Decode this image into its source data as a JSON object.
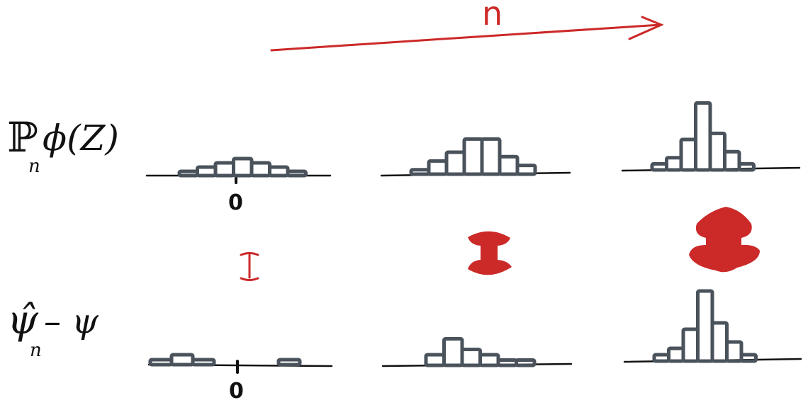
{
  "header": {
    "n_label": "n"
  },
  "rows": [
    {
      "label_main": "ℙ",
      "label_sub": "n",
      "label_rest": "ϕ(Z)"
    },
    {
      "label_main": "ψ̂",
      "label_sub": "n",
      "label_rest": "– ψ"
    }
  ],
  "zero_label": "0",
  "panels": {
    "top": [
      {
        "bars": [
          1,
          2,
          3,
          4,
          3,
          2,
          1
        ]
      },
      {
        "bars": [
          1,
          3,
          5,
          8,
          8,
          4,
          2
        ]
      },
      {
        "bars": [
          1,
          2,
          5,
          11,
          6,
          3,
          1
        ]
      }
    ],
    "bottom": [
      {
        "bars": [
          1,
          2,
          1,
          0,
          0,
          0,
          1
        ]
      },
      {
        "bars": [
          2,
          5,
          3,
          2,
          1,
          1
        ]
      },
      {
        "bars": [
          1,
          2,
          5,
          11,
          6,
          3,
          1
        ]
      }
    ]
  },
  "gap_markers": [
    "small",
    "medium",
    "large"
  ],
  "colors": {
    "ink": "#111111",
    "bars": "#4a525b",
    "accent": "#cc2929"
  }
}
